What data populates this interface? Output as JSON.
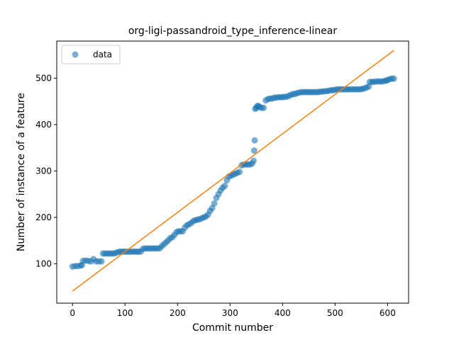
{
  "chart_data": {
    "type": "scatter",
    "title": "org-ligi-passandroid_type_inference-linear",
    "xlabel": "Commit number",
    "ylabel": "Number of instance of a feature",
    "xlim": [
      -30,
      640
    ],
    "ylim": [
      15,
      580
    ],
    "xticks": [
      0,
      100,
      200,
      300,
      400,
      500,
      600
    ],
    "yticks": [
      100,
      200,
      300,
      400,
      500
    ],
    "grid": false,
    "legend": {
      "placement": "top-left",
      "entries": [
        "data"
      ]
    },
    "colors": {
      "data": "#1f77b4",
      "fit": "#ff7f0e"
    },
    "series": [
      {
        "name": "data",
        "kind": "points",
        "points": [
          [
            0,
            94
          ],
          [
            5,
            95
          ],
          [
            10,
            95
          ],
          [
            15,
            96
          ],
          [
            18,
            97
          ],
          [
            20,
            106
          ],
          [
            25,
            107
          ],
          [
            30,
            106
          ],
          [
            35,
            105
          ],
          [
            40,
            110
          ],
          [
            45,
            105
          ],
          [
            50,
            105
          ],
          [
            55,
            105
          ],
          [
            58,
            122
          ],
          [
            62,
            122
          ],
          [
            66,
            122
          ],
          [
            70,
            122
          ],
          [
            74,
            122
          ],
          [
            78,
            122
          ],
          [
            82,
            123
          ],
          [
            86,
            125
          ],
          [
            90,
            126
          ],
          [
            94,
            126
          ],
          [
            98,
            126
          ],
          [
            102,
            126
          ],
          [
            106,
            126
          ],
          [
            110,
            126
          ],
          [
            114,
            126
          ],
          [
            118,
            126
          ],
          [
            122,
            126
          ],
          [
            126,
            126
          ],
          [
            130,
            126
          ],
          [
            134,
            132
          ],
          [
            138,
            133
          ],
          [
            142,
            133
          ],
          [
            146,
            133
          ],
          [
            150,
            133
          ],
          [
            154,
            133
          ],
          [
            158,
            133
          ],
          [
            162,
            133
          ],
          [
            166,
            133
          ],
          [
            170,
            138
          ],
          [
            174,
            142
          ],
          [
            178,
            146
          ],
          [
            182,
            150
          ],
          [
            186,
            155
          ],
          [
            190,
            157
          ],
          [
            194,
            162
          ],
          [
            198,
            168
          ],
          [
            202,
            170
          ],
          [
            206,
            170
          ],
          [
            210,
            170
          ],
          [
            214,
            178
          ],
          [
            218,
            183
          ],
          [
            222,
            185
          ],
          [
            226,
            188
          ],
          [
            230,
            192
          ],
          [
            234,
            194
          ],
          [
            238,
            195
          ],
          [
            242,
            196
          ],
          [
            246,
            198
          ],
          [
            250,
            200
          ],
          [
            254,
            202
          ],
          [
            258,
            206
          ],
          [
            262,
            214
          ],
          [
            266,
            220
          ],
          [
            270,
            230
          ],
          [
            274,
            242
          ],
          [
            278,
            250
          ],
          [
            282,
            258
          ],
          [
            286,
            264
          ],
          [
            290,
            268
          ],
          [
            294,
            280
          ],
          [
            298,
            288
          ],
          [
            302,
            290
          ],
          [
            306,
            292
          ],
          [
            310,
            294
          ],
          [
            314,
            296
          ],
          [
            318,
            298
          ],
          [
            322,
            312
          ],
          [
            326,
            314
          ],
          [
            330,
            314
          ],
          [
            334,
            314
          ],
          [
            338,
            314
          ],
          [
            342,
            316
          ],
          [
            345,
            322
          ],
          [
            346,
            344
          ],
          [
            347,
            366
          ],
          [
            348,
            434
          ],
          [
            350,
            436
          ],
          [
            352,
            440
          ],
          [
            354,
            440
          ],
          [
            356,
            438
          ],
          [
            360,
            436
          ],
          [
            364,
            436
          ],
          [
            368,
            452
          ],
          [
            372,
            455
          ],
          [
            376,
            456
          ],
          [
            380,
            456
          ],
          [
            384,
            458
          ],
          [
            388,
            458
          ],
          [
            392,
            459
          ],
          [
            396,
            459
          ],
          [
            400,
            459
          ],
          [
            404,
            460
          ],
          [
            408,
            460
          ],
          [
            412,
            462
          ],
          [
            416,
            464
          ],
          [
            420,
            466
          ],
          [
            424,
            466
          ],
          [
            428,
            468
          ],
          [
            432,
            469
          ],
          [
            436,
            470
          ],
          [
            440,
            470
          ],
          [
            444,
            470
          ],
          [
            448,
            470
          ],
          [
            452,
            470
          ],
          [
            456,
            470
          ],
          [
            460,
            470
          ],
          [
            464,
            470
          ],
          [
            468,
            470
          ],
          [
            472,
            471
          ],
          [
            476,
            471
          ],
          [
            480,
            472
          ],
          [
            484,
            472
          ],
          [
            488,
            473
          ],
          [
            492,
            474
          ],
          [
            496,
            474
          ],
          [
            500,
            475
          ],
          [
            504,
            476
          ],
          [
            508,
            476
          ],
          [
            512,
            476
          ],
          [
            516,
            476
          ],
          [
            520,
            476
          ],
          [
            524,
            476
          ],
          [
            528,
            476
          ],
          [
            532,
            476
          ],
          [
            536,
            476
          ],
          [
            540,
            476
          ],
          [
            544,
            476
          ],
          [
            548,
            476
          ],
          [
            552,
            477
          ],
          [
            556,
            478
          ],
          [
            560,
            480
          ],
          [
            564,
            482
          ],
          [
            566,
            492
          ],
          [
            570,
            492
          ],
          [
            574,
            492
          ],
          [
            578,
            493
          ],
          [
            582,
            493
          ],
          [
            586,
            493
          ],
          [
            590,
            493
          ],
          [
            594,
            494
          ],
          [
            598,
            495
          ],
          [
            600,
            496
          ],
          [
            604,
            498
          ],
          [
            608,
            499
          ],
          [
            612,
            499
          ]
        ]
      },
      {
        "name": "",
        "kind": "line",
        "points": [
          [
            0,
            41
          ],
          [
            612,
            560
          ]
        ]
      }
    ]
  }
}
